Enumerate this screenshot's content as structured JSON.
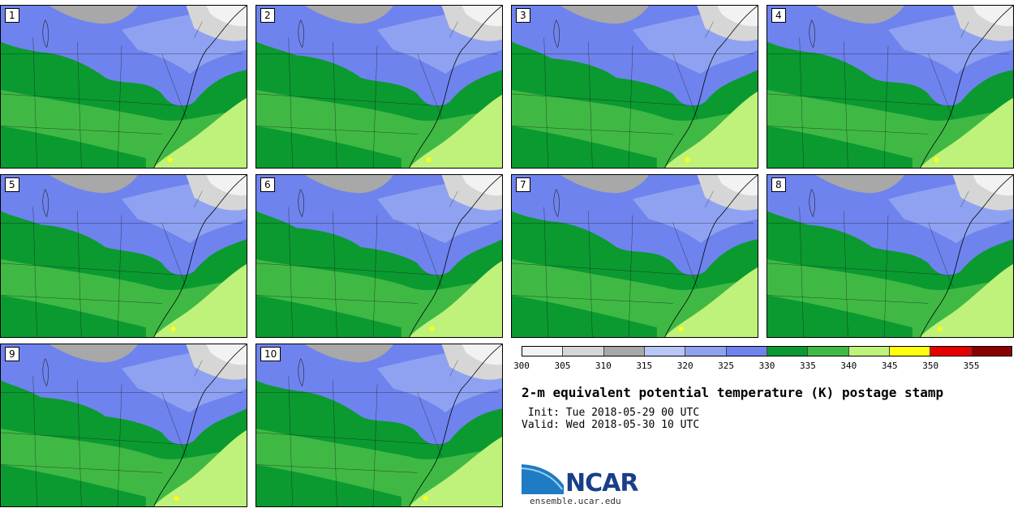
{
  "panels": [
    {
      "label": "1"
    },
    {
      "label": "2"
    },
    {
      "label": "3"
    },
    {
      "label": "4"
    },
    {
      "label": "5"
    },
    {
      "label": "6"
    },
    {
      "label": "7"
    },
    {
      "label": "8"
    },
    {
      "label": "9"
    },
    {
      "label": "10"
    }
  ],
  "colorbar": {
    "colors": [
      "#f2f2f2",
      "#d6d6d6",
      "#a8a8a8",
      "#b9c7f7",
      "#8fa2f2",
      "#6f83ee",
      "#0a9a30",
      "#3fb944",
      "#bff27a",
      "#ffff0f",
      "#e60000",
      "#8b0000"
    ],
    "tick_labels": [
      "300",
      "305",
      "310",
      "315",
      "320",
      "325",
      "330",
      "335",
      "340",
      "345",
      "350",
      "355"
    ]
  },
  "title": "2-m equivalent potential temperature (K) postage stamp",
  "init": " Init: Tue 2018-05-29 00 UTC",
  "valid": "Valid: Wed 2018-05-30 10 UTC",
  "logo": {
    "text": "NCAR",
    "site": "ensemble.ucar.edu"
  }
}
